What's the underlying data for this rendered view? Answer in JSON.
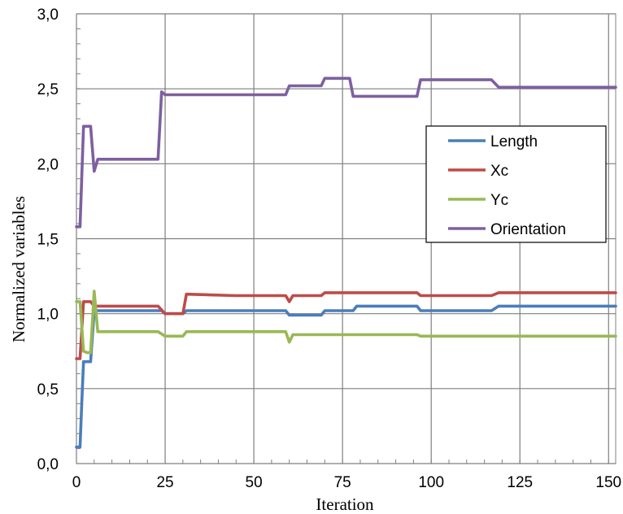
{
  "chart_data": {
    "type": "line",
    "xlabel": "Iteration",
    "ylabel": "Normalized variables",
    "xlim": [
      0,
      152
    ],
    "ylim": [
      0,
      3
    ],
    "x_ticks": [
      0,
      25,
      50,
      75,
      100,
      125,
      150
    ],
    "x_tick_labels": [
      "0",
      "25",
      "50",
      "75",
      "100",
      "125",
      "150"
    ],
    "y_ticks": [
      0,
      0.5,
      1,
      1.5,
      2,
      2.5,
      3
    ],
    "y_tick_labels": [
      "0,0",
      "0,5",
      "1,0",
      "1,5",
      "2,0",
      "2,5",
      "3,0"
    ],
    "grid": true,
    "legend_position": "right-middle",
    "series": [
      {
        "name": "Length",
        "color": "#4a7ebb",
        "x": [
          0,
          1,
          1.5,
          2,
          3,
          4,
          5,
          6,
          20,
          24,
          25,
          30,
          31,
          59,
          60,
          61,
          69,
          70,
          78,
          79,
          96,
          97,
          117,
          119,
          152
        ],
        "y": [
          0.11,
          0.11,
          0.4,
          0.68,
          0.68,
          0.68,
          1.02,
          1.02,
          1.02,
          1.02,
          1.0,
          1.0,
          1.02,
          1.02,
          0.99,
          0.99,
          0.99,
          1.02,
          1.02,
          1.05,
          1.05,
          1.02,
          1.02,
          1.05,
          1.05
        ]
      },
      {
        "name": "Xc",
        "color": "#be4b48",
        "x": [
          0,
          1,
          2,
          3,
          4,
          5,
          6,
          23,
          25,
          29,
          30,
          31,
          45,
          58,
          59,
          60,
          61,
          69,
          70,
          96,
          97,
          117,
          119,
          152
        ],
        "y": [
          0.7,
          0.7,
          1.08,
          1.08,
          1.08,
          1.05,
          1.05,
          1.05,
          1.0,
          1.0,
          1.0,
          1.13,
          1.12,
          1.12,
          1.12,
          1.08,
          1.12,
          1.12,
          1.14,
          1.14,
          1.12,
          1.12,
          1.14,
          1.14
        ]
      },
      {
        "name": "Yc",
        "color": "#98b954",
        "x": [
          0,
          1,
          2,
          3,
          4,
          5,
          6,
          23,
          25,
          29,
          30,
          31,
          45,
          58,
          59,
          60,
          61,
          69,
          70,
          96,
          97,
          152
        ],
        "y": [
          1.08,
          1.08,
          0.75,
          0.74,
          0.74,
          1.15,
          0.88,
          0.88,
          0.85,
          0.85,
          0.85,
          0.88,
          0.88,
          0.88,
          0.88,
          0.81,
          0.86,
          0.86,
          0.86,
          0.86,
          0.85,
          0.85
        ]
      },
      {
        "name": "Orientation",
        "color": "#7d60a0",
        "x": [
          0,
          1,
          2,
          3,
          4,
          5,
          6,
          23,
          24,
          25,
          30,
          31,
          59,
          60,
          61,
          69,
          70,
          77,
          78,
          96,
          97,
          117,
          119,
          152
        ],
        "y": [
          1.58,
          1.58,
          2.25,
          2.25,
          2.25,
          1.95,
          2.03,
          2.03,
          2.48,
          2.46,
          2.46,
          2.46,
          2.46,
          2.52,
          2.52,
          2.52,
          2.57,
          2.57,
          2.45,
          2.45,
          2.56,
          2.56,
          2.51,
          2.51
        ]
      }
    ]
  }
}
